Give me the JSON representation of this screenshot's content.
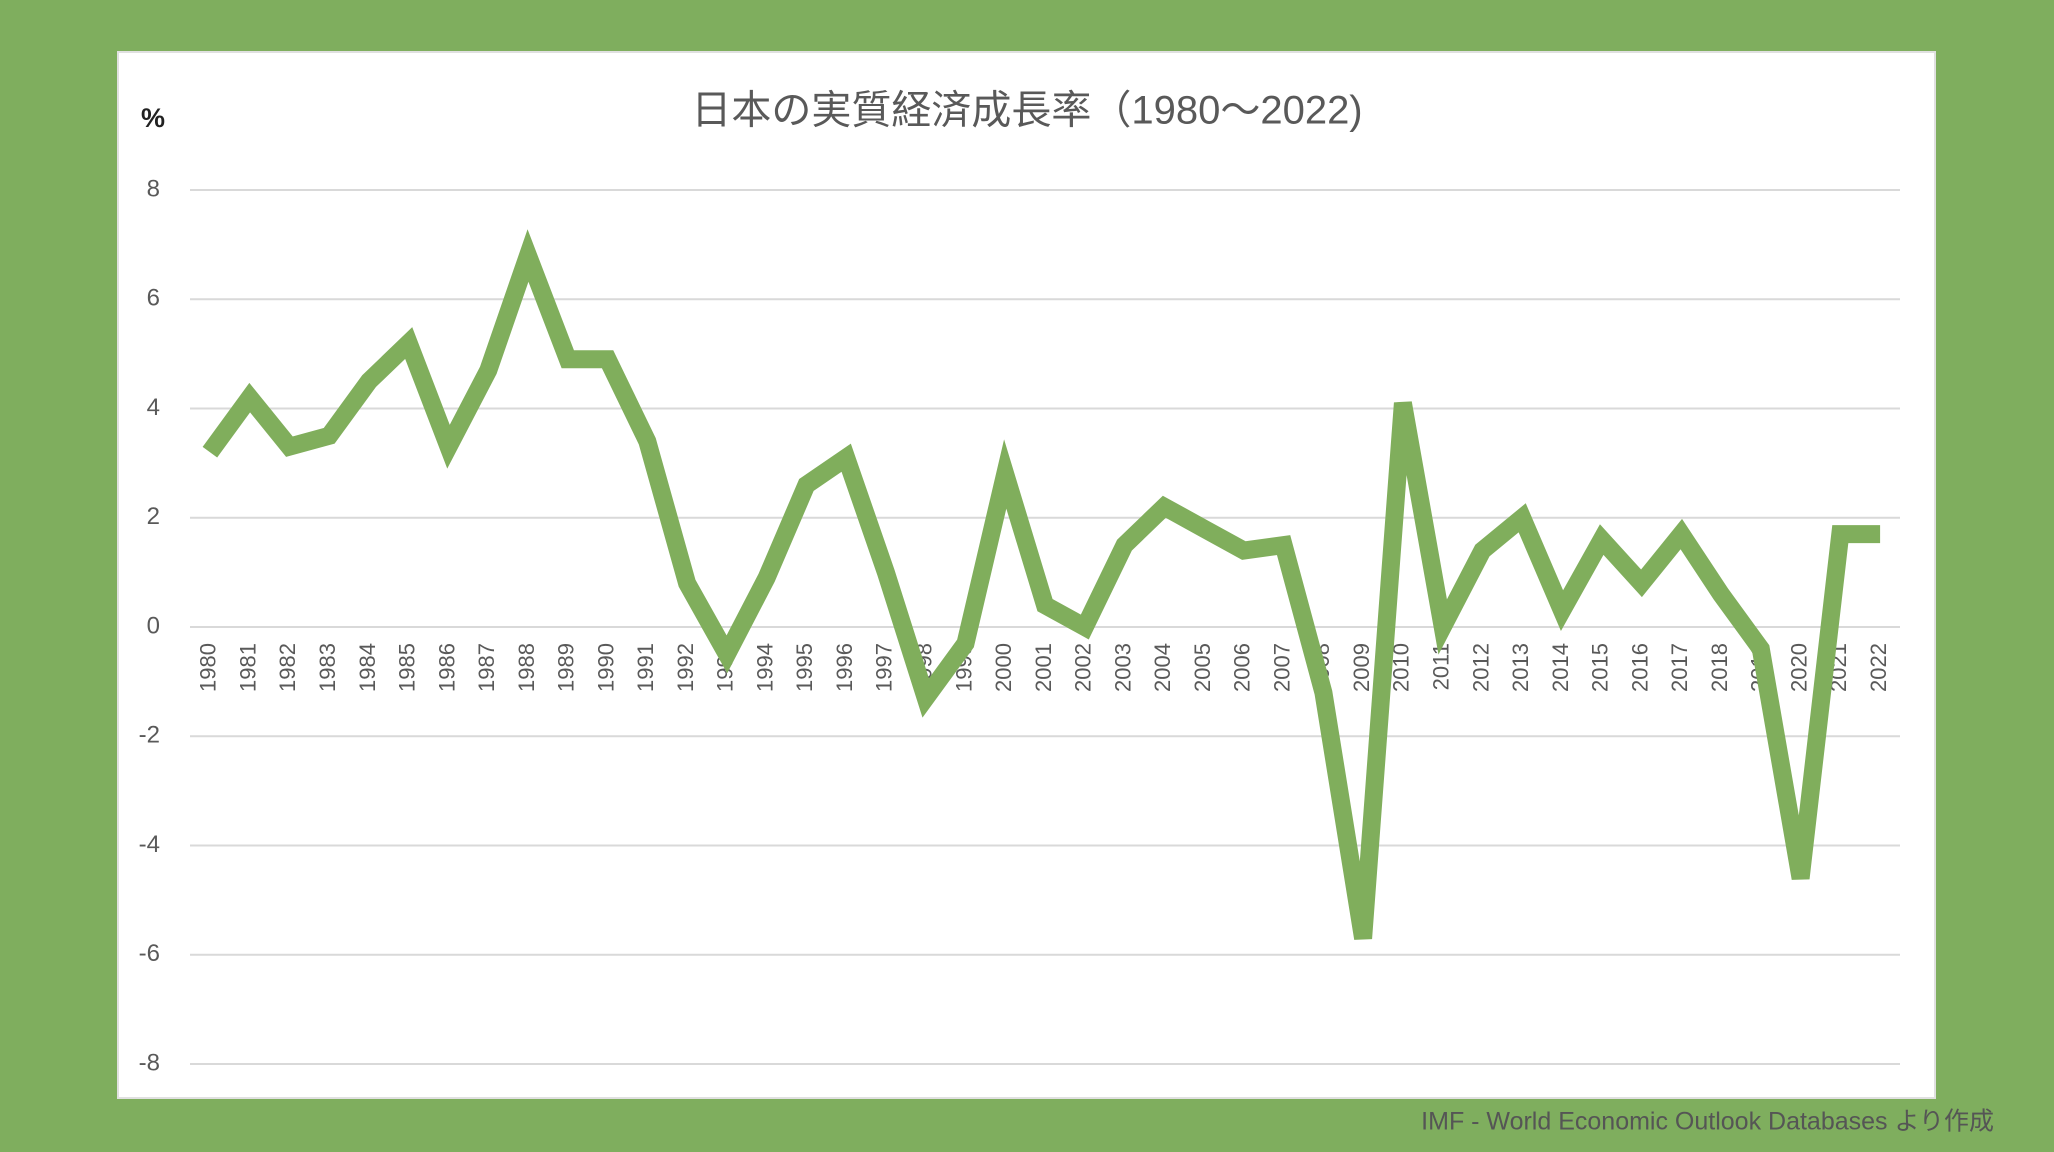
{
  "chart_data": {
    "type": "line",
    "title": "日本の実質経済成長率（1980〜2022)",
    "y_label": "%",
    "source": "IMF - World Economic Outlook Databases より作成",
    "categories": [
      "1980",
      "1981",
      "1982",
      "1983",
      "1984",
      "1985",
      "1986",
      "1987",
      "1988",
      "1989",
      "1990",
      "1991",
      "1992",
      "1993",
      "1994",
      "1995",
      "1996",
      "1997",
      "1998",
      "1999",
      "2000",
      "2001",
      "2002",
      "2003",
      "2004",
      "2005",
      "2006",
      "2007",
      "2008",
      "2009",
      "2010",
      "2011",
      "2012",
      "2013",
      "2014",
      "2015",
      "2016",
      "2017",
      "2018",
      "2019",
      "2020",
      "2021",
      "2022"
    ],
    "values": [
      3.2,
      4.2,
      3.3,
      3.5,
      4.5,
      5.2,
      3.3,
      4.7,
      6.8,
      4.9,
      4.9,
      3.4,
      0.8,
      -0.5,
      0.9,
      2.6,
      3.1,
      1.0,
      -1.3,
      -0.3,
      2.8,
      0.4,
      0.0,
      1.5,
      2.2,
      1.8,
      1.4,
      1.5,
      -1.2,
      -5.7,
      4.1,
      0.0,
      1.4,
      2.0,
      0.3,
      1.6,
      0.8,
      1.7,
      0.6,
      -0.4,
      -4.6,
      1.7,
      1.7
    ],
    "color": "#80ae5c",
    "ylim": [
      -8,
      8
    ],
    "yticks": [
      -8,
      -6,
      -4,
      -2,
      0,
      2,
      4,
      6,
      8
    ],
    "grid": true
  }
}
